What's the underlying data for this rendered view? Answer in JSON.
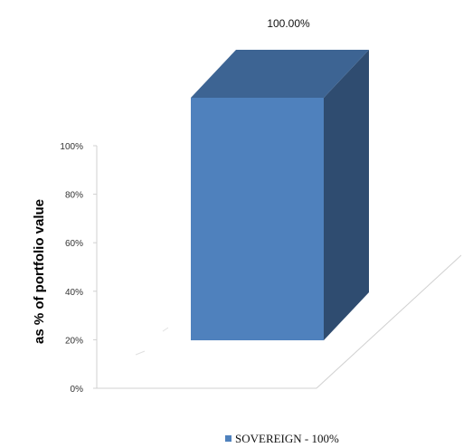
{
  "chart_data": {
    "type": "bar",
    "categories": [
      "SOVEREIGN"
    ],
    "series": [
      {
        "name": "SOVEREIGN - 100%",
        "values": [
          100
        ]
      }
    ],
    "data_labels": [
      "100.00%"
    ],
    "ylabel": "as % of portfolio value",
    "yticks": [
      "0%",
      "20%",
      "40%",
      "60%",
      "80%",
      "100%"
    ],
    "ylim": [
      0,
      100
    ],
    "legend_position": "bottom",
    "colors": {
      "front": "#4f81bd",
      "top": "#3d6493",
      "side": "#2f4c70",
      "axis": "#d0d0d0"
    }
  }
}
